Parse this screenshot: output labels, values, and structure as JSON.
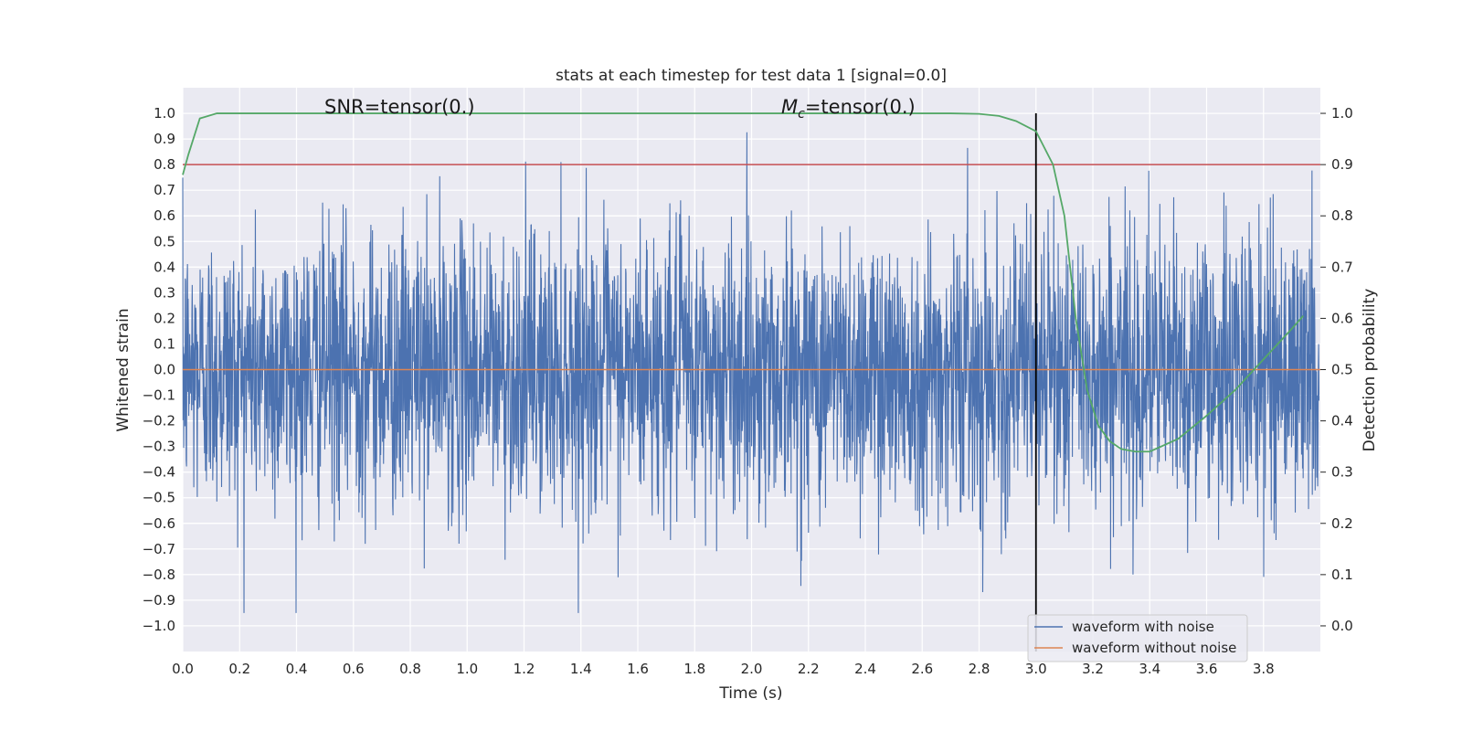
{
  "chart_data": {
    "type": "line",
    "title": "stats at each timestep for test data 1 [signal=0.0]",
    "xlabel": "Time (s)",
    "ylabel": "Whitened strain",
    "y2label": "Detection probability",
    "xlim": [
      0.0,
      4.0
    ],
    "ylim": [
      -1.1,
      1.1
    ],
    "y2lim": [
      -0.05,
      1.05
    ],
    "x_ticks": [
      "0.0",
      "0.2",
      "0.4",
      "0.6",
      "0.8",
      "1.0",
      "1.2",
      "1.4",
      "1.6",
      "1.8",
      "2.0",
      "2.2",
      "2.4",
      "2.6",
      "2.8",
      "3.0",
      "3.2",
      "3.4",
      "3.6",
      "3.8"
    ],
    "y_ticks": [
      "1.0",
      "0.9",
      "0.8",
      "0.7",
      "0.6",
      "0.5",
      "0.4",
      "0.3",
      "0.2",
      "0.1",
      "0.0",
      "−0.1",
      "−0.2",
      "−0.3",
      "−0.4",
      "−0.5",
      "−0.6",
      "−0.7",
      "−0.8",
      "−0.9",
      "−1.0"
    ],
    "y2_ticks": [
      "1.0",
      "0.9",
      "0.8",
      "0.7",
      "0.6",
      "0.5",
      "0.4",
      "0.3",
      "0.2",
      "0.1",
      "0.0"
    ],
    "grid": true,
    "legend_position": "lower-right",
    "annotations": {
      "snr": "SNR=tensor(0.)",
      "mc_symbol": "M",
      "mc_sub": "c",
      "mc_value": "=tensor(0.)"
    },
    "series": [
      {
        "name": "waveform with noise",
        "color": "#4c72b0",
        "note_values": "dense noise spanning roughly -0.95 to 0.97",
        "y_min": -0.95,
        "y_max": 0.97
      },
      {
        "name": "waveform without noise",
        "color": "#dd8452",
        "values_constant": 0.0
      }
    ],
    "detection_probability": {
      "color": "#55a868",
      "x": [
        0.0,
        0.02,
        0.06,
        0.12,
        0.2,
        0.5,
        1.0,
        1.5,
        2.0,
        2.5,
        2.7,
        2.8,
        2.87,
        2.93,
        3.0,
        3.06,
        3.1,
        3.14,
        3.18,
        3.22,
        3.26,
        3.3,
        3.35,
        3.4,
        3.5,
        3.6,
        3.7,
        3.8,
        3.9,
        3.94
      ],
      "y": [
        0.88,
        0.92,
        0.99,
        1.0,
        1.0,
        1.0,
        1.0,
        1.0,
        1.0,
        1.0,
        1.0,
        0.999,
        0.995,
        0.985,
        0.965,
        0.9,
        0.8,
        0.6,
        0.46,
        0.39,
        0.36,
        0.345,
        0.34,
        0.34,
        0.365,
        0.41,
        0.46,
        0.52,
        0.58,
        0.605
      ]
    },
    "threshold": {
      "color": "#c44e52",
      "value": 0.9
    },
    "vertical_marker": {
      "color": "#000000",
      "x": 3.0
    }
  }
}
